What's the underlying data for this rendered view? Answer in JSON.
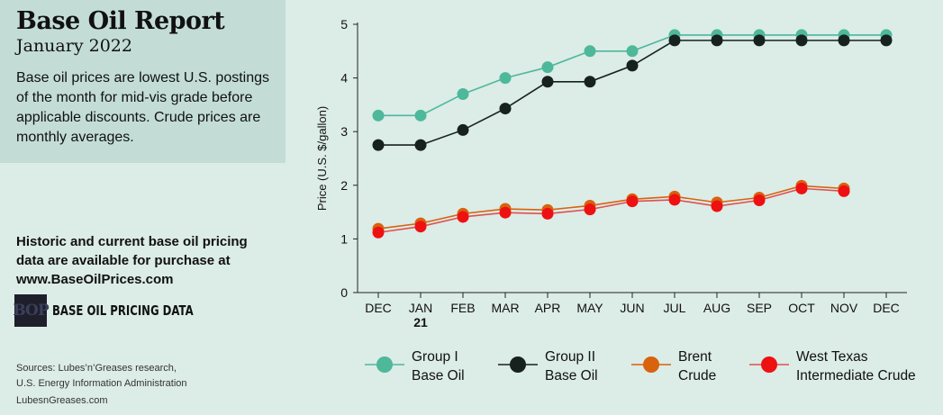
{
  "header": {
    "title": "Base Oil Report",
    "subtitle": "January 2022",
    "description": "Base oil prices are lowest U.S. postings of the month for mid-vis grade before applicable discounts. Crude prices are monthly averages."
  },
  "promo": {
    "text": "Historic and current base oil pricing data are available for purchase at",
    "url": "www.BaseOilPrices.com"
  },
  "bop": {
    "logo_text": "BOP",
    "label": "BASE OIL PRICING DATA"
  },
  "footer": {
    "sources_line1": "Sources: Lubes’n’Greases research,",
    "sources_line2": "U.S. Energy Information Administration",
    "website": "LubesnGreases.com"
  },
  "chart_data": {
    "type": "line",
    "ylabel": "Price (U.S. $/gallon)",
    "xlabel": "",
    "ylim": [
      0,
      5
    ],
    "yticks": [
      0,
      1,
      2,
      3,
      4,
      5
    ],
    "categories": [
      "DEC",
      "JAN",
      "FEB",
      "MAR",
      "APR",
      "MAY",
      "JUN",
      "JUL",
      "AUG",
      "SEP",
      "OCT",
      "NOV",
      "DEC"
    ],
    "year_marker": {
      "index": 1,
      "label": "21"
    },
    "grid": false,
    "legend_position": "bottom",
    "series": [
      {
        "name": "Group I Base Oil",
        "legend_lines": [
          "Group I",
          "Base Oil"
        ],
        "color": "#4db89a",
        "line_color": "#4db89a",
        "values": [
          3.3,
          3.3,
          3.7,
          4.0,
          4.2,
          4.5,
          4.5,
          4.8,
          4.8,
          4.8,
          4.8,
          4.8,
          4.8
        ]
      },
      {
        "name": "Group II Base Oil",
        "legend_lines": [
          "Group II",
          "Base Oil"
        ],
        "color": "#17211e",
        "line_color": "#17211e",
        "values": [
          2.75,
          2.75,
          3.03,
          3.43,
          3.93,
          3.93,
          4.23,
          4.7,
          4.7,
          4.7,
          4.7,
          4.7,
          4.7
        ]
      },
      {
        "name": "Brent Crude",
        "legend_lines": [
          "Brent",
          "Crude"
        ],
        "color": "#d8620e",
        "line_color": "#d8620e",
        "values": [
          1.19,
          1.29,
          1.47,
          1.56,
          1.54,
          1.62,
          1.74,
          1.79,
          1.68,
          1.77,
          1.99,
          1.94,
          null
        ]
      },
      {
        "name": "West Texas Intermediate Crude",
        "legend_lines": [
          "West Texas",
          "Intermediate Crude"
        ],
        "color": "#ee1111",
        "line_color": "#e05050",
        "values": [
          1.12,
          1.23,
          1.41,
          1.49,
          1.47,
          1.55,
          1.7,
          1.73,
          1.61,
          1.72,
          1.94,
          1.89,
          null
        ]
      }
    ]
  }
}
